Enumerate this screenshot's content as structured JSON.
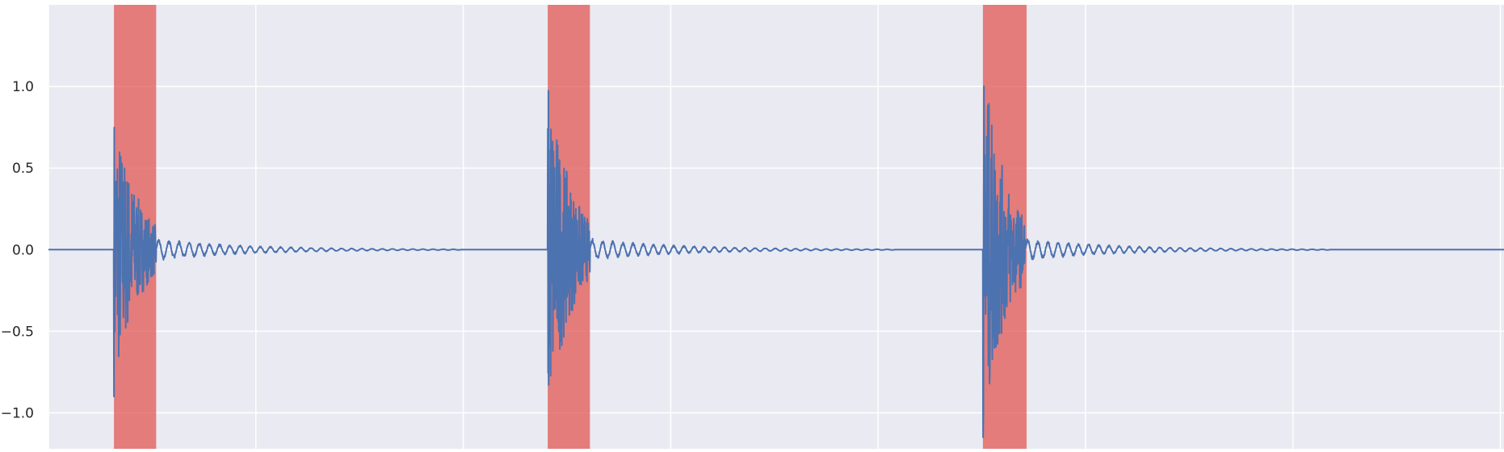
{
  "chart_data": {
    "type": "line",
    "title": "",
    "xlabel": "",
    "ylabel": "",
    "grid": true,
    "xlim": [
      0,
      20000
    ],
    "ylim": [
      -1.22,
      1.5
    ],
    "yticks": [
      1.0,
      0.5,
      0.0,
      -0.5,
      -1.0
    ],
    "ytick_labels": [
      "1.0",
      "0.5",
      "0.0",
      "−0.5",
      "−1.0"
    ],
    "xgrid": [
      0,
      2850,
      5700,
      8550,
      11400,
      14250,
      17100,
      19950
    ],
    "highlight_regions": [
      {
        "start": 900,
        "end": 1480
      },
      {
        "start": 6860,
        "end": 7440
      },
      {
        "start": 12840,
        "end": 13440
      }
    ],
    "series": [
      {
        "color": "#4c72b0",
        "events": [
          {
            "onset": 900,
            "peak": 0.9
          },
          {
            "onset": 6860,
            "peak": 1.08
          },
          {
            "onset": 12840,
            "peak": 1.18
          }
        ],
        "burst_length": 580,
        "tail_amplitude": 0.07,
        "tail_length": 4200,
        "baseline": 0.0
      }
    ],
    "colors": {
      "background": "#eaeaf2",
      "grid": "#ffffff",
      "highlight": "#e0524c",
      "line": "#4c72b0"
    }
  }
}
